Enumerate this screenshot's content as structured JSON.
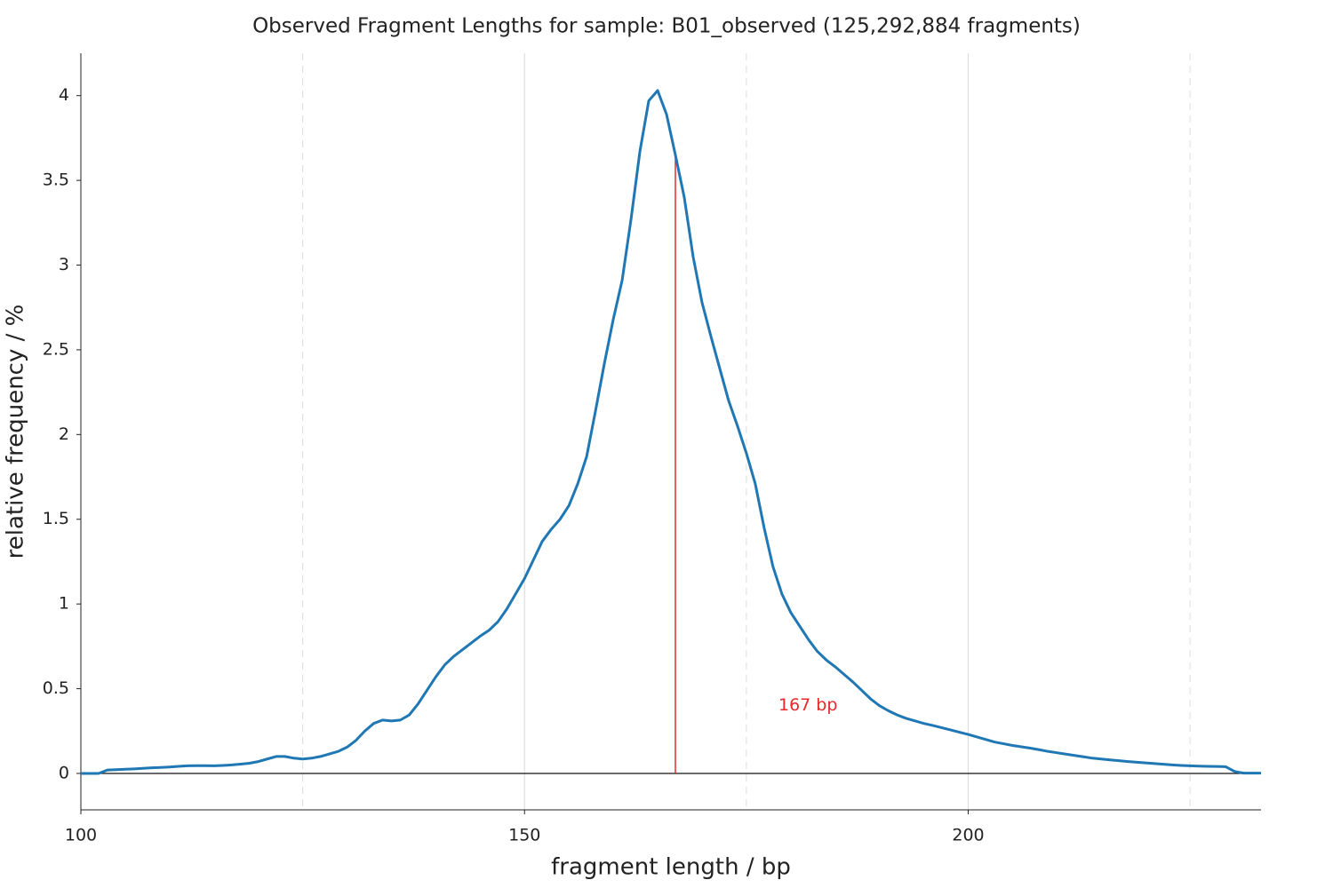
{
  "chart_data": {
    "type": "line",
    "title": "Observed Fragment Lengths for sample: B01_observed (125,292,884 fragments)",
    "xlabel": "fragment length / bp",
    "ylabel": "relative frequency / %",
    "x": [
      100,
      101,
      102,
      103,
      104,
      105,
      106,
      107,
      108,
      109,
      110,
      111,
      112,
      113,
      114,
      115,
      116,
      117,
      118,
      119,
      120,
      121,
      122,
      123,
      124,
      125,
      126,
      127,
      128,
      129,
      130,
      131,
      132,
      133,
      134,
      135,
      136,
      137,
      138,
      139,
      140,
      141,
      142,
      143,
      144,
      145,
      146,
      147,
      148,
      149,
      150,
      151,
      152,
      153,
      154,
      155,
      156,
      157,
      158,
      159,
      160,
      161,
      162,
      163,
      164,
      165,
      166,
      167,
      168,
      169,
      170,
      171,
      172,
      173,
      174,
      175,
      176,
      177,
      178,
      179,
      180,
      181,
      182,
      183,
      184,
      185,
      186,
      187,
      188,
      189,
      190,
      191,
      192,
      193,
      194,
      195,
      196,
      197,
      198,
      199,
      200,
      201,
      202,
      203,
      204,
      205,
      206,
      207,
      208,
      209,
      210,
      211,
      212,
      213,
      214,
      215,
      216,
      217,
      218,
      219,
      220,
      221,
      222,
      223,
      224,
      225,
      226,
      227,
      228,
      229,
      230,
      231,
      232,
      233
    ],
    "series": [
      {
        "color": "#1f77b4",
        "values": [
          0,
          0,
          0,
          0.02,
          0.022,
          0.025,
          0.027,
          0.03,
          0.033,
          0.035,
          0.038,
          0.042,
          0.045,
          0.046,
          0.046,
          0.045,
          0.047,
          0.05,
          0.055,
          0.06,
          0.07,
          0.085,
          0.1,
          0.1,
          0.09,
          0.085,
          0.09,
          0.1,
          0.115,
          0.13,
          0.155,
          0.195,
          0.25,
          0.295,
          0.315,
          0.31,
          0.315,
          0.345,
          0.41,
          0.49,
          0.57,
          0.64,
          0.69,
          0.73,
          0.77,
          0.81,
          0.845,
          0.895,
          0.97,
          1.06,
          1.15,
          1.26,
          1.37,
          1.44,
          1.5,
          1.58,
          1.71,
          1.87,
          2.14,
          2.42,
          2.68,
          2.91,
          3.27,
          3.67,
          3.97,
          4.03,
          3.89,
          3.65,
          3.4,
          3.05,
          2.78,
          2.58,
          2.39,
          2.2,
          2.05,
          1.89,
          1.71,
          1.45,
          1.22,
          1.06,
          0.95,
          0.87,
          0.79,
          0.72,
          0.67,
          0.63,
          0.585,
          0.54,
          0.49,
          0.44,
          0.4,
          0.37,
          0.345,
          0.325,
          0.31,
          0.295,
          0.283,
          0.27,
          0.257,
          0.243,
          0.23,
          0.215,
          0.2,
          0.185,
          0.175,
          0.165,
          0.157,
          0.149,
          0.14,
          0.13,
          0.122,
          0.114,
          0.106,
          0.098,
          0.09,
          0.085,
          0.08,
          0.075,
          0.07,
          0.066,
          0.062,
          0.058,
          0.054,
          0.05,
          0.047,
          0.045,
          0.043,
          0.042,
          0.041,
          0.04,
          0.012,
          0.002,
          0.002,
          0.002
        ]
      }
    ],
    "xlim": [
      100,
      233
    ],
    "ylim": [
      -0.215,
      4.25
    ],
    "xticks": [
      100,
      150,
      200
    ],
    "xminorticks": [
      125,
      175,
      225
    ],
    "yticks": [
      0,
      0.5,
      1,
      1.5,
      2,
      2.5,
      3,
      3.5,
      4
    ],
    "grid": true,
    "annotation": {
      "x": 167,
      "text": "167 bp",
      "color": "#e8282b"
    }
  }
}
